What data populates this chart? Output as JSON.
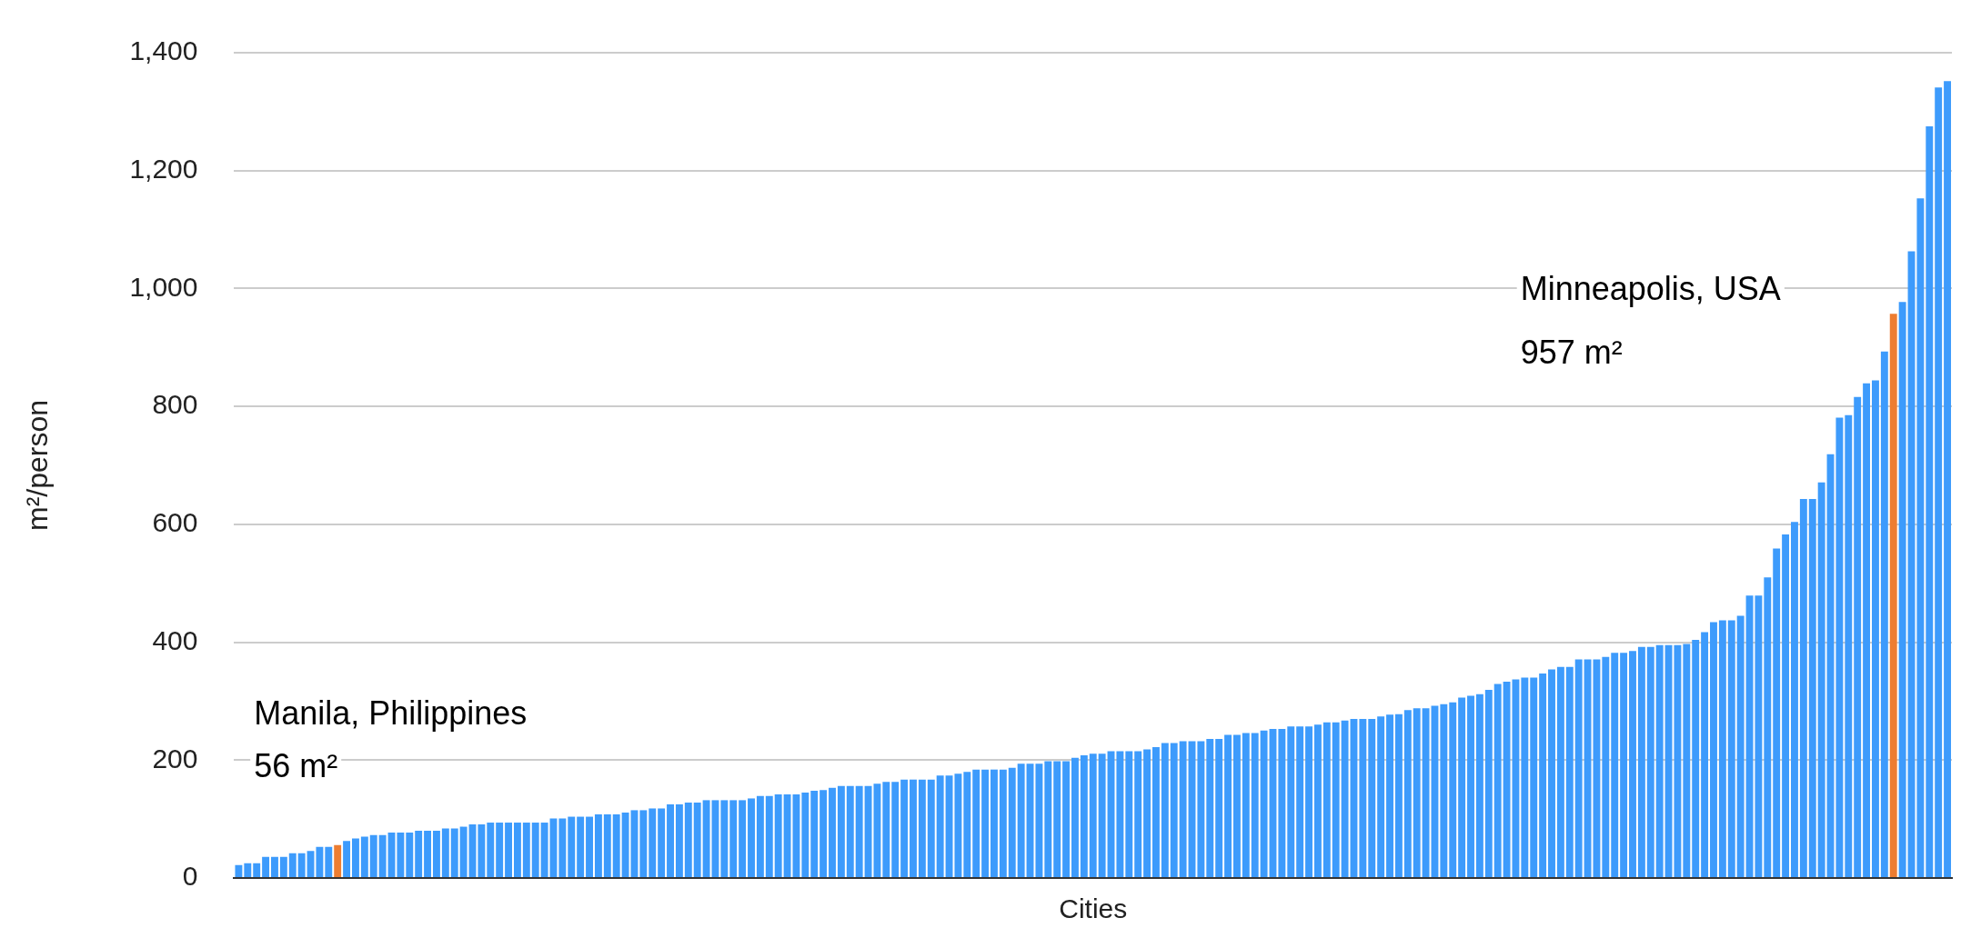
{
  "chart_data": {
    "type": "bar",
    "xlabel": "Cities",
    "ylabel": "m²/person",
    "categories": [
      null,
      null,
      null,
      null,
      null,
      null,
      null,
      null,
      null,
      null,
      null,
      null,
      null,
      null,
      null,
      null,
      null,
      null,
      null,
      null,
      null,
      null,
      null,
      null,
      null,
      null,
      null,
      null,
      null,
      null,
      null,
      null,
      null,
      null,
      null,
      null,
      null,
      null,
      null,
      null,
      null,
      null,
      null,
      null,
      null,
      null,
      null,
      null,
      null,
      null,
      null,
      null,
      null,
      null,
      null,
      null,
      null,
      null,
      null,
      null,
      null,
      null,
      null,
      null,
      null,
      null,
      null,
      null,
      null,
      null,
      null,
      null,
      null,
      null,
      null,
      null,
      null,
      null,
      null,
      null,
      null,
      null,
      null,
      null,
      null,
      null,
      null,
      null,
      null,
      null,
      null,
      null,
      null,
      null,
      null,
      null,
      null,
      null,
      null,
      null,
      null,
      null,
      null,
      null,
      null,
      null,
      null,
      null,
      null,
      null,
      null,
      null,
      null,
      null,
      null,
      null,
      null,
      null,
      null,
      null,
      null,
      null,
      null,
      null,
      null,
      null,
      null,
      null,
      null,
      null,
      null,
      null,
      null,
      null,
      null,
      null,
      null,
      null,
      null,
      null,
      null,
      null,
      null,
      null,
      null,
      null,
      null,
      null,
      null,
      null,
      null,
      null,
      null,
      null,
      null,
      null,
      null,
      null,
      null,
      null,
      null,
      null,
      null,
      null,
      null,
      null,
      null,
      null,
      null,
      null,
      null,
      null,
      null,
      null,
      null,
      null,
      null,
      null,
      null,
      null,
      null,
      null,
      null,
      null,
      null,
      null,
      null,
      null,
      null,
      null,
      null
    ],
    "values": [
      22,
      25,
      25,
      36,
      36,
      36,
      42,
      42,
      46,
      53,
      53,
      56,
      63,
      67,
      70,
      73,
      73,
      77,
      77,
      77,
      80,
      80,
      80,
      84,
      84,
      87,
      91,
      91,
      94,
      94,
      94,
      94,
      94,
      94,
      94,
      101,
      101,
      104,
      104,
      104,
      108,
      108,
      108,
      111,
      115,
      115,
      118,
      118,
      125,
      125,
      128,
      128,
      132,
      132,
      132,
      132,
      132,
      135,
      139,
      139,
      142,
      142,
      142,
      145,
      148,
      149,
      153,
      156,
      156,
      156,
      156,
      160,
      163,
      163,
      167,
      167,
      167,
      167,
      174,
      174,
      177,
      180,
      184,
      184,
      184,
      184,
      187,
      194,
      194,
      194,
      198,
      198,
      198,
      204,
      208,
      211,
      211,
      215,
      215,
      215,
      215,
      218,
      222,
      229,
      229,
      232,
      232,
      232,
      236,
      236,
      243,
      243,
      246,
      246,
      250,
      253,
      253,
      257,
      257,
      257,
      260,
      264,
      264,
      267,
      270,
      270,
      270,
      274,
      277,
      278,
      285,
      288,
      288,
      292,
      295,
      298,
      306,
      309,
      312,
      319,
      329,
      333,
      337,
      340,
      340,
      347,
      354,
      358,
      358,
      371,
      371,
      371,
      375,
      382,
      382,
      385,
      392,
      392,
      395,
      395,
      395,
      397,
      404,
      417,
      434,
      437,
      437,
      445,
      479,
      479,
      510,
      559,
      583,
      604,
      643,
      643,
      671,
      719,
      781,
      785,
      816,
      839,
      844,
      893,
      957,
      977,
      1063,
      1153,
      1275,
      1341,
      1352
    ],
    "colors": [
      "#3d9bfc",
      "#3d9bfc",
      "#3d9bfc",
      "#3d9bfc",
      "#3d9bfc",
      "#3d9bfc",
      "#3d9bfc",
      "#3d9bfc",
      "#3d9bfc",
      "#3d9bfc",
      "#3d9bfc",
      "#ed7d31",
      "#3d9bfc",
      "#3d9bfc",
      "#3d9bfc",
      "#3d9bfc",
      "#3d9bfc",
      "#3d9bfc",
      "#3d9bfc",
      "#3d9bfc",
      "#3d9bfc",
      "#3d9bfc",
      "#3d9bfc",
      "#3d9bfc",
      "#3d9bfc",
      "#3d9bfc",
      "#3d9bfc",
      "#3d9bfc",
      "#3d9bfc",
      "#3d9bfc",
      "#3d9bfc",
      "#3d9bfc",
      "#3d9bfc",
      "#3d9bfc",
      "#3d9bfc",
      "#3d9bfc",
      "#3d9bfc",
      "#3d9bfc",
      "#3d9bfc",
      "#3d9bfc",
      "#3d9bfc",
      "#3d9bfc",
      "#3d9bfc",
      "#3d9bfc",
      "#3d9bfc",
      "#3d9bfc",
      "#3d9bfc",
      "#3d9bfc",
      "#3d9bfc",
      "#3d9bfc",
      "#3d9bfc",
      "#3d9bfc",
      "#3d9bfc",
      "#3d9bfc",
      "#3d9bfc",
      "#3d9bfc",
      "#3d9bfc",
      "#3d9bfc",
      "#3d9bfc",
      "#3d9bfc",
      "#3d9bfc",
      "#3d9bfc",
      "#3d9bfc",
      "#3d9bfc",
      "#3d9bfc",
      "#3d9bfc",
      "#3d9bfc",
      "#3d9bfc",
      "#3d9bfc",
      "#3d9bfc",
      "#3d9bfc",
      "#3d9bfc",
      "#3d9bfc",
      "#3d9bfc",
      "#3d9bfc",
      "#3d9bfc",
      "#3d9bfc",
      "#3d9bfc",
      "#3d9bfc",
      "#3d9bfc",
      "#3d9bfc",
      "#3d9bfc",
      "#3d9bfc",
      "#3d9bfc",
      "#3d9bfc",
      "#3d9bfc",
      "#3d9bfc",
      "#3d9bfc",
      "#3d9bfc",
      "#3d9bfc",
      "#3d9bfc",
      "#3d9bfc",
      "#3d9bfc",
      "#3d9bfc",
      "#3d9bfc",
      "#3d9bfc",
      "#3d9bfc",
      "#3d9bfc",
      "#3d9bfc",
      "#3d9bfc",
      "#3d9bfc",
      "#3d9bfc",
      "#3d9bfc",
      "#3d9bfc",
      "#3d9bfc",
      "#3d9bfc",
      "#3d9bfc",
      "#3d9bfc",
      "#3d9bfc",
      "#3d9bfc",
      "#3d9bfc",
      "#3d9bfc",
      "#3d9bfc",
      "#3d9bfc",
      "#3d9bfc",
      "#3d9bfc",
      "#3d9bfc",
      "#3d9bfc",
      "#3d9bfc",
      "#3d9bfc",
      "#3d9bfc",
      "#3d9bfc",
      "#3d9bfc",
      "#3d9bfc",
      "#3d9bfc",
      "#3d9bfc",
      "#3d9bfc",
      "#3d9bfc",
      "#3d9bfc",
      "#3d9bfc",
      "#3d9bfc",
      "#3d9bfc",
      "#3d9bfc",
      "#3d9bfc",
      "#3d9bfc",
      "#3d9bfc",
      "#3d9bfc",
      "#3d9bfc",
      "#3d9bfc",
      "#3d9bfc",
      "#3d9bfc",
      "#3d9bfc",
      "#3d9bfc",
      "#3d9bfc",
      "#3d9bfc",
      "#3d9bfc",
      "#3d9bfc",
      "#3d9bfc",
      "#3d9bfc",
      "#3d9bfc",
      "#3d9bfc",
      "#3d9bfc",
      "#3d9bfc",
      "#3d9bfc",
      "#3d9bfc",
      "#3d9bfc",
      "#3d9bfc",
      "#3d9bfc",
      "#3d9bfc",
      "#3d9bfc",
      "#3d9bfc",
      "#3d9bfc",
      "#3d9bfc",
      "#3d9bfc",
      "#3d9bfc",
      "#3d9bfc",
      "#3d9bfc",
      "#3d9bfc",
      "#3d9bfc",
      "#3d9bfc",
      "#3d9bfc",
      "#3d9bfc",
      "#3d9bfc",
      "#3d9bfc",
      "#3d9bfc",
      "#3d9bfc",
      "#3d9bfc",
      "#3d9bfc",
      "#3d9bfc",
      "#3d9bfc",
      "#3d9bfc",
      "#3d9bfc",
      "#3d9bfc",
      "#3d9bfc",
      "#ed7d31",
      "#3d9bfc",
      "#3d9bfc",
      "#3d9bfc",
      "#3d9bfc",
      "#3d9bfc",
      "#3d9bfc"
    ],
    "annotations": [
      "Manila, Philippines",
      "56 m²",
      "Minneapolis, USA",
      "957 m²"
    ],
    "ylim": [
      0,
      1400
    ],
    "yticks": [
      0,
      200,
      400,
      600,
      800,
      {
        "value": 1000,
        "label": "1,000"
      },
      {
        "value": 1200,
        "label": "1,200"
      },
      {
        "value": 1400,
        "label": "1,400"
      }
    ],
    "grid": "y"
  }
}
